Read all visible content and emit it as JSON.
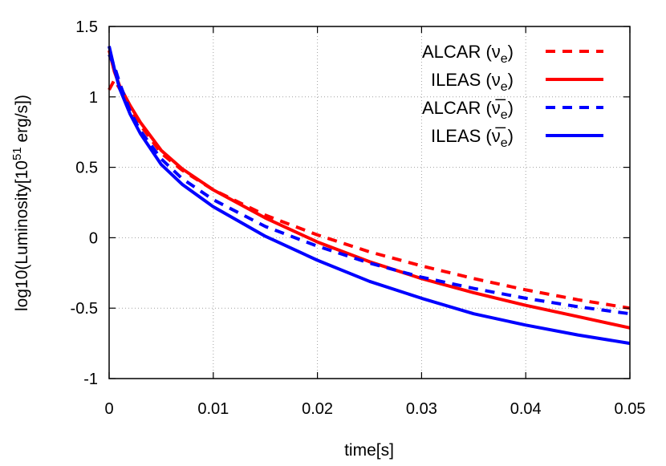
{
  "chart_data": {
    "type": "line",
    "title": "",
    "xlabel": "time[s]",
    "ylabel": "log10(Luminosity[10^51 erg/s])",
    "ylabel_parts": {
      "pre": "log10(Luminosity[10",
      "sup": "51",
      "post": " erg/s])"
    },
    "xlim": [
      0,
      0.05
    ],
    "ylim": [
      -1,
      1.5
    ],
    "xticks": [
      0,
      0.01,
      0.02,
      0.03,
      0.04,
      0.05
    ],
    "xtick_labels": [
      "0",
      "0.01",
      "0.02",
      "0.03",
      "0.04",
      "0.05"
    ],
    "yticks": [
      -1,
      -0.5,
      0,
      0.5,
      1,
      1.5
    ],
    "ytick_labels": [
      "-1",
      "-0.5",
      "0",
      "0.5",
      "1",
      "1.5"
    ],
    "grid": true,
    "legend_position": "top-right",
    "series": [
      {
        "name": "ALCAR (νe)",
        "name_parts": {
          "pre": "ALCAR (",
          "nu": "ν",
          "sub": "e",
          "post": ")",
          "bar": false
        },
        "color": "#ff0000",
        "dash": true,
        "x": [
          0,
          0.0005,
          0.001,
          0.002,
          0.003,
          0.005,
          0.007,
          0.01,
          0.015,
          0.02,
          0.025,
          0.03,
          0.035,
          0.04,
          0.045,
          0.05
        ],
        "y": [
          1.05,
          1.12,
          1.06,
          0.92,
          0.8,
          0.6,
          0.48,
          0.34,
          0.16,
          0.02,
          -0.1,
          -0.2,
          -0.29,
          -0.37,
          -0.44,
          -0.5
        ]
      },
      {
        "name": "ILEAS (νe)",
        "name_parts": {
          "pre": "ILEAS (",
          "nu": "ν",
          "sub": "e",
          "post": ")",
          "bar": false
        },
        "color": "#ff0000",
        "dash": false,
        "x": [
          0,
          0.0005,
          0.001,
          0.002,
          0.003,
          0.005,
          0.007,
          0.01,
          0.015,
          0.02,
          0.025,
          0.03,
          0.035,
          0.04,
          0.045,
          0.05
        ],
        "y": [
          1.33,
          1.18,
          1.08,
          0.94,
          0.82,
          0.62,
          0.49,
          0.34,
          0.14,
          -0.03,
          -0.17,
          -0.29,
          -0.39,
          -0.48,
          -0.56,
          -0.64
        ]
      },
      {
        "name": "ALCAR (ν̄e)",
        "name_parts": {
          "pre": "ALCAR (",
          "nu": "ν",
          "sub": "e",
          "post": ")",
          "bar": true
        },
        "color": "#0000ff",
        "dash": true,
        "x": [
          0,
          0.0005,
          0.001,
          0.002,
          0.003,
          0.005,
          0.007,
          0.01,
          0.015,
          0.02,
          0.025,
          0.03,
          0.035,
          0.04,
          0.045,
          0.05
        ],
        "y": [
          1.3,
          1.22,
          1.1,
          0.9,
          0.76,
          0.56,
          0.42,
          0.27,
          0.08,
          -0.06,
          -0.18,
          -0.28,
          -0.36,
          -0.43,
          -0.49,
          -0.54
        ]
      },
      {
        "name": "ILEAS (ν̄e)",
        "name_parts": {
          "pre": "ILEAS (",
          "nu": "ν",
          "sub": "e",
          "post": ")",
          "bar": true
        },
        "color": "#0000ff",
        "dash": false,
        "x": [
          0,
          0.0005,
          0.001,
          0.002,
          0.003,
          0.005,
          0.007,
          0.01,
          0.015,
          0.02,
          0.025,
          0.03,
          0.035,
          0.04,
          0.045,
          0.05
        ],
        "y": [
          1.36,
          1.2,
          1.06,
          0.88,
          0.74,
          0.52,
          0.38,
          0.22,
          0.01,
          -0.16,
          -0.31,
          -0.43,
          -0.54,
          -0.62,
          -0.69,
          -0.75
        ]
      }
    ]
  }
}
